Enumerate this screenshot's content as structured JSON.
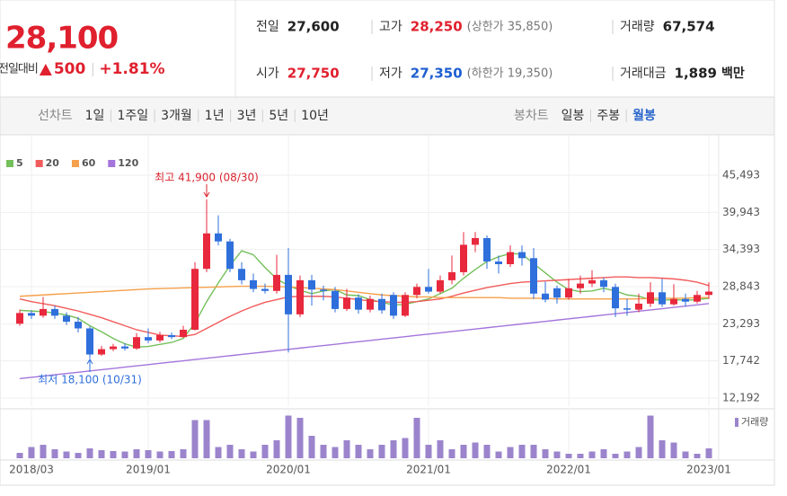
{
  "header": {
    "price": "28,100",
    "change_label": "전일대비",
    "change": "500",
    "change_pct": "+1.81%",
    "stats": [
      [
        {
          "label": "전일",
          "value": "27,600",
          "color": "#222222"
        },
        {
          "label": "시가",
          "value": "27,750",
          "color": "#e0202e"
        }
      ],
      [
        {
          "label": "고가",
          "value": "28,250",
          "color": "#e0202e",
          "note": "(상한가 35,850)"
        },
        {
          "label": "저가",
          "value": "27,350",
          "color": "#1e5fd0",
          "note": "(하한가 19,350)"
        }
      ],
      [
        {
          "label": "거래량",
          "value": "67,574",
          "color": "#222222"
        },
        {
          "label": "거래대금",
          "value": "1,889",
          "color": "#222222",
          "unit": "백만"
        }
      ]
    ]
  },
  "tabs": {
    "line": {
      "label": "선차트",
      "items": [
        "1일",
        "1주일",
        "3개월",
        "1년",
        "3년",
        "5년",
        "10년"
      ]
    },
    "candle": {
      "label": "봉차트",
      "items": [
        "일봉",
        "주봉",
        "월봉"
      ],
      "selected": 2
    }
  },
  "chart_data": [
    {
      "type": "candlestick",
      "categories": [
        null,
        "2018/03",
        null,
        null,
        null,
        null,
        null,
        null,
        null,
        null,
        null,
        "2019/01",
        null,
        null,
        null,
        null,
        null,
        null,
        null,
        null,
        null,
        null,
        null,
        "2020/01",
        null,
        null,
        null,
        null,
        null,
        null,
        null,
        null,
        null,
        null,
        null,
        "2021/01",
        null,
        null,
        null,
        null,
        null,
        null,
        null,
        null,
        null,
        null,
        null,
        "2022/01",
        null,
        null,
        null,
        null,
        null,
        null,
        null,
        null,
        null,
        null,
        null,
        "2023/01"
      ],
      "open": [
        23300,
        24900,
        24500,
        25500,
        24500,
        23600,
        22600,
        18700,
        19500,
        19900,
        19600,
        21300,
        20800,
        21600,
        21300,
        22400,
        31500,
        36800,
        35600,
        31500,
        29800,
        28500,
        28200,
        30600,
        24700,
        29800,
        28400,
        28200,
        25500,
        27200,
        25400,
        27000,
        27600,
        24500,
        27600,
        28800,
        28100,
        29800,
        31000,
        35100,
        36100,
        32600,
        32200,
        34000,
        33100,
        27800,
        28600,
        27200,
        28600,
        29300,
        29800,
        28800,
        25600,
        25400,
        26300,
        28000,
        26200,
        27000,
        26600,
        27600
      ],
      "high": [
        25400,
        25300,
        27300,
        26000,
        25000,
        24300,
        22900,
        20000,
        20300,
        20400,
        21900,
        22600,
        22100,
        22000,
        23000,
        32500,
        41900,
        39500,
        36000,
        32500,
        30800,
        29300,
        33600,
        34600,
        30500,
        30600,
        29000,
        28800,
        28500,
        27700,
        27500,
        27800,
        28000,
        28000,
        29300,
        31500,
        30500,
        33500,
        37000,
        37000,
        36500,
        33500,
        35000,
        35000,
        34600,
        29600,
        29000,
        30000,
        30500,
        31300,
        30200,
        29300,
        27000,
        27800,
        29500,
        30000,
        29200,
        27800,
        28200,
        29500
      ],
      "low": [
        23000,
        24000,
        24200,
        24000,
        23100,
        22000,
        18100,
        18500,
        19200,
        19300,
        19400,
        20400,
        20500,
        21000,
        21200,
        22300,
        31000,
        35000,
        31000,
        29200,
        28000,
        27800,
        27800,
        19000,
        24300,
        26000,
        26800,
        25000,
        25200,
        24800,
        25000,
        24800,
        24000,
        24300,
        27100,
        27800,
        27800,
        29200,
        30500,
        34000,
        31500,
        30800,
        31800,
        32000,
        27000,
        26500,
        26300,
        26900,
        27800,
        28800,
        28000,
        24300,
        24500,
        25000,
        25800,
        25800,
        26000,
        25900,
        26300,
        27000
      ],
      "close": [
        24900,
        24500,
        25500,
        24500,
        23600,
        22600,
        18700,
        19500,
        19900,
        19600,
        21300,
        20800,
        21600,
        21300,
        22400,
        31500,
        36800,
        35600,
        31500,
        29800,
        28500,
        28200,
        30600,
        24700,
        29800,
        28400,
        28200,
        25500,
        27200,
        25400,
        27000,
        25300,
        24500,
        27600,
        28800,
        28100,
        29800,
        31000,
        35100,
        36100,
        32600,
        32200,
        34000,
        33100,
        27800,
        26900,
        27200,
        28600,
        29300,
        29800,
        28800,
        25600,
        25400,
        26300,
        28000,
        26200,
        27000,
        26600,
        27600,
        28100
      ],
      "up_color": "#e8283c",
      "down_color": "#2f6fdc",
      "series": [
        {
          "name": "5",
          "color": "#74c05a",
          "values": [
            25300,
            25200,
            25100,
            24900,
            24600,
            24100,
            23000,
            22100,
            21100,
            20300,
            19800,
            19900,
            20200,
            20500,
            21100,
            23400,
            26600,
            29400,
            32000,
            34200,
            33600,
            31700,
            30000,
            29000,
            28300,
            27800,
            28200,
            28400,
            27600,
            27500,
            26900,
            26500,
            26100,
            26200,
            26600,
            27000,
            27800,
            28600,
            30100,
            31400,
            32600,
            33300,
            33800,
            33700,
            32300,
            30900,
            29500,
            28400,
            28100,
            28200,
            28600,
            28200,
            27600,
            27400,
            26900,
            26800,
            26900,
            26800,
            26900,
            27100
          ]
        },
        {
          "name": "20",
          "color": "#f25b5b",
          "values": [
            27000,
            26600,
            26300,
            26000,
            25600,
            25200,
            24700,
            24200,
            23600,
            23000,
            22400,
            22000,
            21600,
            21500,
            21400,
            21700,
            22600,
            23500,
            24400,
            25200,
            25900,
            26500,
            26900,
            27300,
            27400,
            27400,
            27400,
            27300,
            27100,
            26900,
            26700,
            26600,
            26500,
            26500,
            26600,
            26800,
            27000,
            27400,
            27900,
            28300,
            28700,
            29000,
            29300,
            29500,
            29600,
            29700,
            29800,
            29900,
            30000,
            30100,
            30200,
            30300,
            30300,
            30200,
            30200,
            30100,
            30000,
            29800,
            29500,
            29000
          ]
        },
        {
          "name": "60",
          "color": "#f5a04a",
          "values": [
            27400,
            27500,
            27600,
            27700,
            27800,
            27900,
            28000,
            28100,
            28200,
            28300,
            28400,
            28500,
            28550,
            28600,
            28650,
            28700,
            28750,
            28800,
            28850,
            28900,
            28900,
            28900,
            28850,
            28800,
            28700,
            28600,
            28500,
            28400,
            28200,
            28000,
            27800,
            27600,
            27500,
            27400,
            27300,
            27300,
            27200,
            27200,
            27200,
            27200,
            27200,
            27200,
            27100,
            27100,
            27100,
            27100,
            27000,
            27000,
            27000,
            27000,
            27000,
            27000,
            27000,
            27000,
            27100,
            27100,
            27100,
            27100,
            27200,
            27200
          ]
        },
        {
          "name": "120",
          "color": "#a475dc",
          "values": [
            15100,
            15290,
            15480,
            15670,
            15860,
            16050,
            16240,
            16430,
            16620,
            16810,
            17000,
            17190,
            17380,
            17570,
            17760,
            17950,
            18140,
            18330,
            18520,
            18710,
            18900,
            19090,
            19280,
            19470,
            19660,
            19850,
            20040,
            20230,
            20420,
            20610,
            20800,
            20990,
            21180,
            21370,
            21560,
            21750,
            21940,
            22130,
            22320,
            22510,
            22700,
            22890,
            23080,
            23270,
            23460,
            23650,
            23840,
            24030,
            24220,
            24410,
            24600,
            24790,
            24980,
            25170,
            25360,
            25550,
            25740,
            25930,
            26120,
            26310
          ]
        }
      ],
      "ylim": [
        10983,
        50193
      ],
      "yticks": [
        {
          "value": 12192,
          "label": "12,192"
        },
        {
          "value": 17742,
          "label": "17,742"
        },
        {
          "value": 23293,
          "label": "23,293"
        },
        {
          "value": 28843,
          "label": "28,843"
        },
        {
          "value": 34393,
          "label": "34,393"
        },
        {
          "value": 39943,
          "label": "39,943"
        },
        {
          "value": 45493,
          "label": "45,493"
        }
      ],
      "grid": true,
      "annotations": {
        "max": "최고 41,900 (08/30)",
        "min": "최저 18,100 (10/31)"
      }
    },
    {
      "type": "bar",
      "series": [
        {
          "name": "거래량",
          "color": "#9b84cc",
          "values": [
            120000,
            250000,
            300000,
            200000,
            150000,
            120000,
            220000,
            180000,
            160000,
            150000,
            200000,
            180000,
            150000,
            160000,
            200000,
            850000,
            850000,
            250000,
            300000,
            200000,
            150000,
            300000,
            400000,
            950000,
            900000,
            500000,
            300000,
            250000,
            400000,
            300000,
            200000,
            300000,
            400000,
            450000,
            900000,
            300000,
            400000,
            200000,
            300000,
            350000,
            300000,
            150000,
            250000,
            300000,
            300000,
            200000,
            150000,
            100000,
            100000,
            150000,
            200000,
            100000,
            150000,
            250000,
            950000,
            400000,
            350000,
            150000,
            100000,
            220000
          ]
        }
      ],
      "ylim": [
        0,
        1000000
      ]
    }
  ]
}
